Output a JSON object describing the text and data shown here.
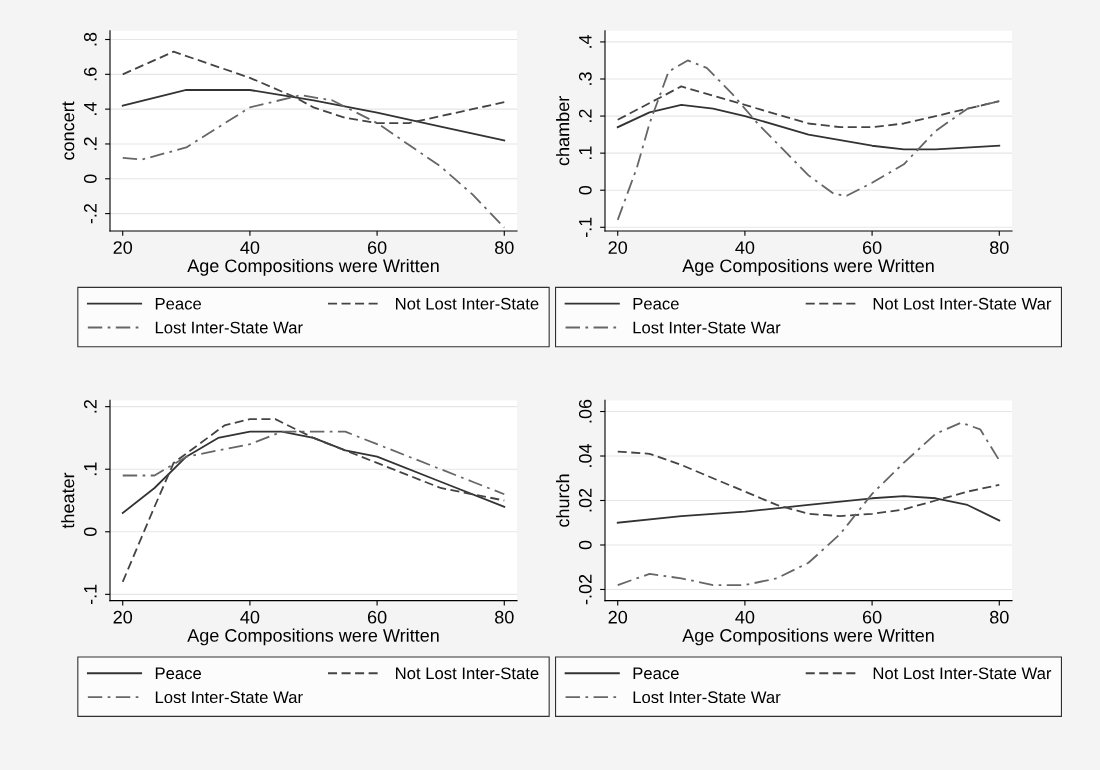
{
  "chart_data": [
    {
      "type": "line",
      "xlabel": "Age Compositions were Written",
      "ylabel": "concert",
      "xlim": [
        18,
        82
      ],
      "xticks": [
        20,
        40,
        60,
        80
      ],
      "ylim": [
        -0.3,
        0.85
      ],
      "yticks": [
        {
          "value": -0.2,
          "label": "-.2"
        },
        0,
        {
          "value": 0.2,
          "label": ".2"
        },
        {
          "value": 0.4,
          "label": ".4"
        },
        {
          "value": 0.6,
          "label": ".6"
        },
        {
          "value": 0.8,
          "label": ".8"
        }
      ],
      "grid": "y",
      "legend": "bottom",
      "series": [
        {
          "name": "Peace",
          "color": "#333333",
          "line_style": "solid",
          "x": [
            20,
            30,
            35,
            40,
            50,
            60,
            70,
            80
          ],
          "values": [
            0.42,
            0.51,
            0.51,
            0.51,
            0.45,
            0.38,
            0.3,
            0.22
          ]
        },
        {
          "name": "Not Lost Inter-State",
          "color": "#444444",
          "line_style": "dashed",
          "x": [
            20,
            28,
            40,
            47,
            50,
            55,
            60,
            65,
            70,
            80
          ],
          "values": [
            0.6,
            0.73,
            0.58,
            0.47,
            0.41,
            0.35,
            0.32,
            0.32,
            0.36,
            0.44
          ]
        },
        {
          "name": "Lost Inter-State War",
          "color": "#666666",
          "line_style": "dashdot",
          "x": [
            20,
            23,
            30,
            40,
            48,
            53,
            60,
            70,
            75,
            80
          ],
          "values": [
            0.12,
            0.11,
            0.18,
            0.41,
            0.48,
            0.45,
            0.32,
            0.07,
            -0.09,
            -0.28
          ]
        }
      ]
    },
    {
      "type": "line",
      "xlabel": "Age Compositions were Written",
      "ylabel": "chamber",
      "xlim": [
        18,
        82
      ],
      "xticks": [
        20,
        40,
        60,
        80
      ],
      "ylim": [
        -0.11,
        0.43
      ],
      "yticks": [
        {
          "value": -0.1,
          "label": "-.1"
        },
        0,
        {
          "value": 0.1,
          "label": ".1"
        },
        {
          "value": 0.2,
          "label": ".2"
        },
        {
          "value": 0.3,
          "label": ".3"
        },
        {
          "value": 0.4,
          "label": ".4"
        }
      ],
      "grid": "y",
      "legend": "bottom",
      "series": [
        {
          "name": "Peace",
          "color": "#333333",
          "line_style": "solid",
          "x": [
            20,
            25,
            30,
            35,
            40,
            50,
            60,
            65,
            70,
            80
          ],
          "values": [
            0.17,
            0.21,
            0.23,
            0.22,
            0.2,
            0.15,
            0.12,
            0.11,
            0.11,
            0.12
          ]
        },
        {
          "name": "Not Lost Inter-State War",
          "color": "#444444",
          "line_style": "dashed",
          "x": [
            20,
            30,
            40,
            50,
            55,
            60,
            65,
            70,
            75,
            80
          ],
          "values": [
            0.19,
            0.28,
            0.23,
            0.18,
            0.17,
            0.17,
            0.18,
            0.2,
            0.22,
            0.24
          ]
        },
        {
          "name": "Lost Inter-State War",
          "color": "#666666",
          "line_style": "dashdot",
          "x": [
            20,
            23,
            25,
            28,
            31,
            34,
            38,
            42,
            46,
            50,
            54,
            56,
            60,
            65,
            70,
            75,
            80
          ],
          "values": [
            -0.08,
            0.06,
            0.18,
            0.32,
            0.35,
            0.33,
            0.26,
            0.18,
            0.11,
            0.04,
            -0.01,
            -0.015,
            0.02,
            0.07,
            0.16,
            0.22,
            0.24
          ]
        }
      ]
    },
    {
      "type": "line",
      "xlabel": "Age Compositions were Written",
      "ylabel": "theater",
      "xlim": [
        18,
        82
      ],
      "xticks": [
        20,
        40,
        60,
        80
      ],
      "ylim": [
        -0.11,
        0.21
      ],
      "yticks": [
        {
          "value": -0.1,
          "label": "-.1"
        },
        0,
        {
          "value": 0.1,
          "label": ".1"
        },
        {
          "value": 0.2,
          "label": ".2"
        }
      ],
      "grid": "y",
      "legend": "bottom",
      "series": [
        {
          "name": "Peace",
          "color": "#333333",
          "line_style": "solid",
          "x": [
            20,
            25,
            30,
            35,
            40,
            45,
            50,
            55,
            60,
            70,
            80
          ],
          "values": [
            0.03,
            0.07,
            0.12,
            0.15,
            0.16,
            0.16,
            0.15,
            0.13,
            0.12,
            0.08,
            0.04
          ]
        },
        {
          "name": "Not Lost Inter-State",
          "color": "#444444",
          "line_style": "dashed",
          "x": [
            20,
            25,
            28,
            32,
            36,
            40,
            44,
            50,
            60,
            70,
            80
          ],
          "values": [
            -0.08,
            0.04,
            0.11,
            0.14,
            0.17,
            0.18,
            0.18,
            0.15,
            0.11,
            0.07,
            0.05
          ]
        },
        {
          "name": "Lost Inter-State War",
          "color": "#666666",
          "line_style": "dashdot",
          "x": [
            20,
            25,
            30,
            40,
            45,
            50,
            55,
            60,
            70,
            75,
            80
          ],
          "values": [
            0.09,
            0.09,
            0.12,
            0.14,
            0.16,
            0.16,
            0.16,
            0.14,
            0.1,
            0.08,
            0.06
          ]
        }
      ]
    },
    {
      "type": "line",
      "xlabel": "Age Compositions were Written",
      "ylabel": "church",
      "xlim": [
        18,
        82
      ],
      "xticks": [
        20,
        40,
        60,
        80
      ],
      "ylim": [
        -0.025,
        0.065
      ],
      "yticks": [
        {
          "value": -0.02,
          "label": "-.02"
        },
        0,
        {
          "value": 0.02,
          "label": ".02"
        },
        {
          "value": 0.04,
          "label": ".04"
        },
        {
          "value": 0.06,
          "label": ".06"
        }
      ],
      "grid": "y",
      "legend": "bottom",
      "series": [
        {
          "name": "Peace",
          "color": "#333333",
          "line_style": "solid",
          "x": [
            20,
            30,
            40,
            50,
            60,
            65,
            70,
            75,
            80
          ],
          "values": [
            0.01,
            0.013,
            0.015,
            0.018,
            0.021,
            0.022,
            0.021,
            0.018,
            0.011
          ]
        },
        {
          "name": "Not Lost Inter-State War",
          "color": "#444444",
          "line_style": "dashed",
          "x": [
            20,
            25,
            30,
            40,
            45,
            50,
            55,
            60,
            65,
            70,
            75,
            80
          ],
          "values": [
            0.042,
            0.041,
            0.036,
            0.024,
            0.018,
            0.014,
            0.013,
            0.014,
            0.016,
            0.02,
            0.024,
            0.027
          ]
        },
        {
          "name": "Lost Inter-State War",
          "color": "#666666",
          "line_style": "dashdot",
          "x": [
            20,
            25,
            30,
            35,
            40,
            45,
            50,
            55,
            60,
            65,
            70,
            74,
            77,
            80
          ],
          "values": [
            -0.018,
            -0.013,
            -0.015,
            -0.018,
            -0.018,
            -0.015,
            -0.008,
            0.005,
            0.023,
            0.037,
            0.05,
            0.055,
            0.052,
            0.038
          ]
        }
      ]
    }
  ]
}
